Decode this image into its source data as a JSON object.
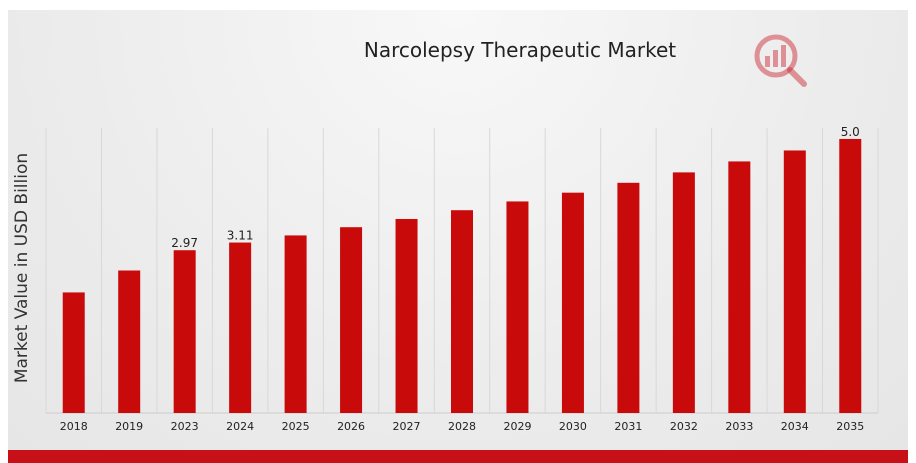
{
  "chart_data": {
    "type": "bar",
    "title": "Narcolepsy Therapeutic Market",
    "ylabel": "Market Value in USD Billion",
    "xlabel": "",
    "categories": [
      "2018",
      "2019",
      "2023",
      "2024",
      "2025",
      "2026",
      "2027",
      "2028",
      "2029",
      "2030",
      "2031",
      "2032",
      "2033",
      "2034",
      "2035"
    ],
    "values": [
      2.2,
      2.6,
      2.97,
      3.11,
      3.24,
      3.39,
      3.54,
      3.7,
      3.86,
      4.02,
      4.2,
      4.39,
      4.59,
      4.79,
      5.0
    ],
    "data_labels": {
      "2023": "2.97",
      "2024": "3.11",
      "2035": "5.0"
    },
    "ylim": [
      0,
      5.2
    ],
    "grid": "vertical",
    "bar_color": "#c80a0a"
  },
  "colors": {
    "accent": "#c81018",
    "logo": "#c8202a"
  },
  "logo_icon": "chart-magnifier-icon"
}
